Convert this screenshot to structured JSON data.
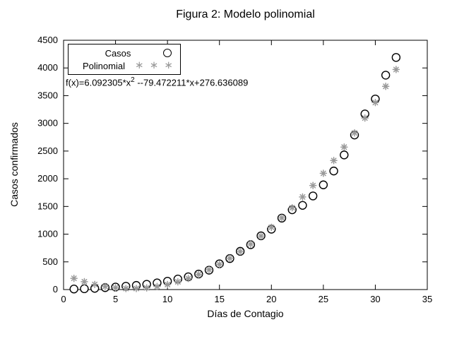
{
  "colors": {
    "casos": "#000000",
    "polinomial": "#999999",
    "axis": "#000000",
    "background": "#ffffff"
  },
  "chart_data": {
    "type": "scatter",
    "title": "Figura 2: Modelo polinomial",
    "xlabel": "Días de Contagio",
    "ylabel": "Casos confirmados",
    "xlim": [
      0,
      35
    ],
    "ylim": [
      0,
      4500
    ],
    "xticks": [
      0,
      5,
      10,
      15,
      20,
      25,
      30,
      35
    ],
    "yticks": [
      0,
      500,
      1000,
      1500,
      2000,
      2500,
      3000,
      3500,
      4000,
      4500
    ],
    "grid": false,
    "legend_position": "top-left-inside",
    "annotation": {
      "prefix": "f(x)=6.092305*x",
      "sup": "2",
      "suffix": " --79.472211*x+276.636089"
    },
    "legend": [
      {
        "label": "Casos",
        "marker": "circle",
        "sample": ""
      },
      {
        "label": "Polinomial",
        "marker": "asterisk",
        "sample": "∗ ∗ ∗"
      }
    ],
    "series": [
      {
        "name": "Casos",
        "marker": "circle",
        "color": "#000000",
        "x": [
          1,
          2,
          3,
          4,
          5,
          6,
          7,
          8,
          9,
          10,
          11,
          12,
          13,
          14,
          15,
          16,
          17,
          18,
          19,
          20,
          21,
          22,
          23,
          24,
          25,
          26,
          27,
          28,
          29,
          30,
          31,
          32
        ],
        "y": [
          10,
          15,
          22,
          35,
          45,
          60,
          75,
          95,
          120,
          150,
          190,
          230,
          280,
          350,
          465,
          560,
          690,
          810,
          970,
          1090,
          1290,
          1440,
          1520,
          1690,
          1890,
          2140,
          2430,
          2790,
          3170,
          3440,
          3870,
          4190
        ]
      },
      {
        "name": "Polinomial",
        "marker": "asterisk",
        "color": "#999999",
        "x": [
          1,
          2,
          3,
          4,
          5,
          6,
          7,
          8,
          9,
          10,
          11,
          12,
          13,
          14,
          15,
          16,
          17,
          18,
          19,
          20,
          21,
          22,
          23,
          24,
          25,
          26,
          27,
          28,
          29,
          30,
          31,
          32
        ],
        "y": [
          203,
          142,
          93,
          56,
          32,
          19,
          19,
          31,
          55,
          91,
          140,
          200,
          273,
          358,
          455,
          565,
          686,
          820,
          966,
          1124,
          1294,
          1477,
          1672,
          1878,
          2098,
          2329,
          2572,
          2828,
          3096,
          3376,
          3668,
          3972
        ]
      }
    ]
  }
}
